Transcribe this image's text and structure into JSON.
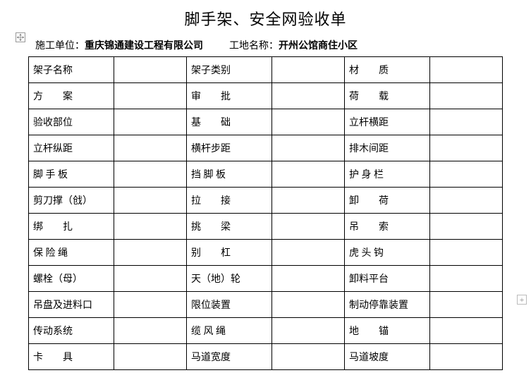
{
  "title": "脚手架、安全网验收单",
  "header": {
    "construction_label": "施工单位：",
    "construction_value": "重庆锦通建设工程有限公司",
    "site_label": "工地名称：",
    "site_value": "开州公馆商住小区"
  },
  "table": {
    "rows": [
      [
        "架子名称",
        "",
        "架子类别",
        "",
        "材　　质",
        ""
      ],
      [
        "方　　案",
        "",
        "审　　批",
        "",
        "荷　　载",
        ""
      ],
      [
        "验收部位",
        "",
        "基　　础",
        "",
        "立杆横距",
        ""
      ],
      [
        "立杆纵距",
        "",
        "横杆步距",
        "",
        "排木间距",
        ""
      ],
      [
        "脚 手 板",
        "",
        "挡 脚 板",
        "",
        "护 身 栏",
        ""
      ],
      [
        "剪刀撑（戗）",
        "",
        "拉　　接",
        "",
        "卸　　荷",
        ""
      ],
      [
        "绑　　扎",
        "",
        "挑　　梁",
        "",
        "吊　　索",
        ""
      ],
      [
        "保 险 绳",
        "",
        "别　　杠",
        "",
        "虎 头 钩",
        ""
      ],
      [
        "螺栓（母）",
        "",
        "天（地）轮",
        "",
        "卸料平台",
        ""
      ],
      [
        "吊盘及进料口",
        "",
        "限位装置",
        "",
        "制动停靠装置",
        ""
      ],
      [
        "传动系统",
        "",
        "缆 风 绳",
        "",
        "地　　锚",
        ""
      ],
      [
        "卡　　具",
        "",
        "马道宽度",
        "",
        "马道坡度",
        ""
      ]
    ]
  },
  "colors": {
    "background": "#ffffff",
    "text": "#000000",
    "border": "#000000",
    "icon_border": "#999999"
  }
}
